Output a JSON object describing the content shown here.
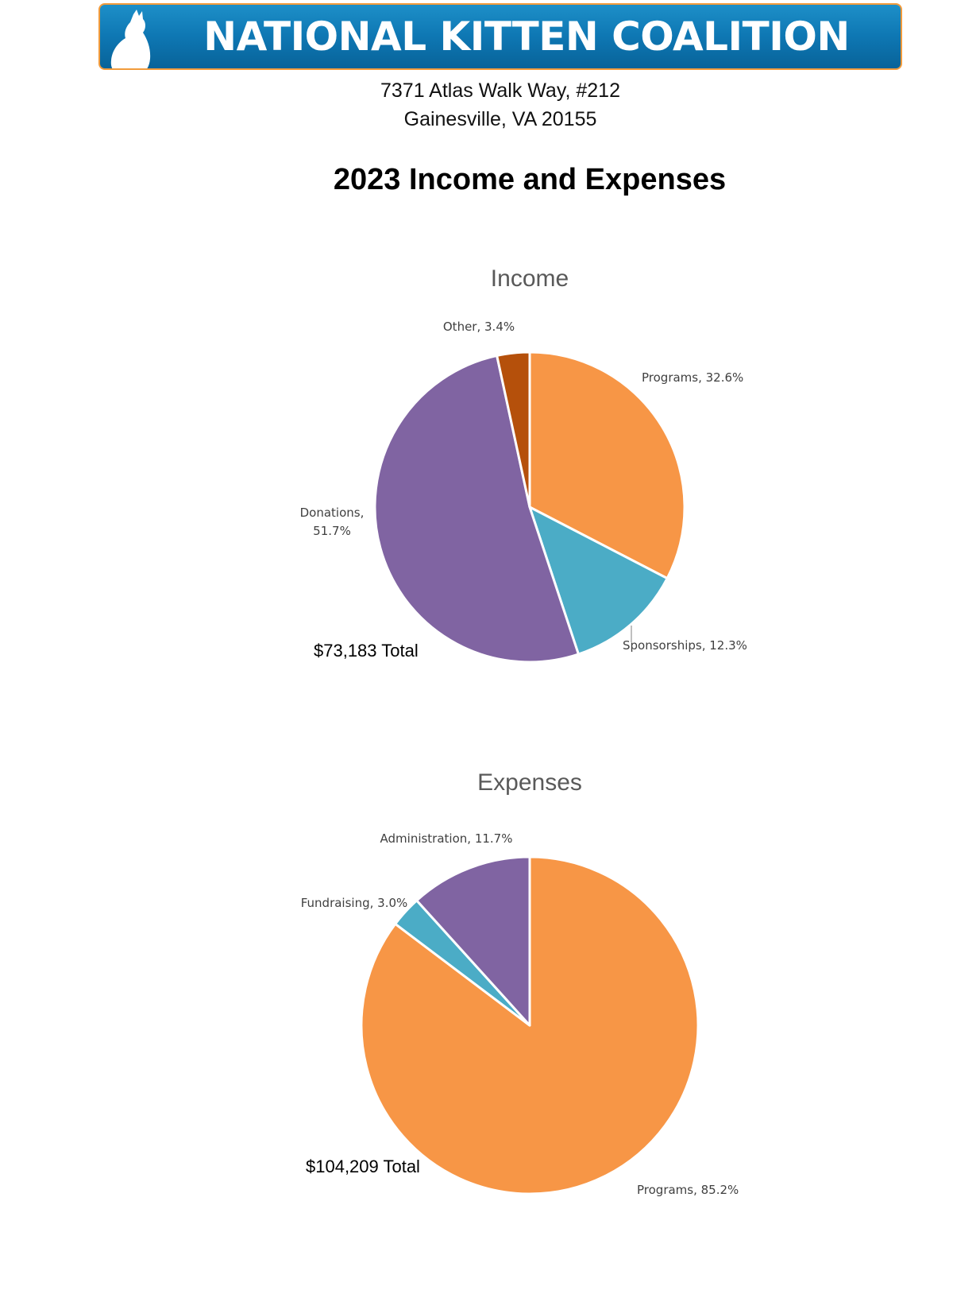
{
  "header": {
    "org_name": "NATIONAL KITTEN COALITION",
    "address_line1": "7371 Atlas Walk Way, #212",
    "address_line2": "Gainesville, VA  20155",
    "report_title": "2023 Income and Expenses"
  },
  "chart_data": [
    {
      "type": "pie",
      "title": "Income",
      "total_label": "$73,183 Total",
      "slices": [
        {
          "name": "Programs",
          "value": 32.6,
          "label": "Programs, 32.6%",
          "color": "#f79646"
        },
        {
          "name": "Sponsorships",
          "value": 12.3,
          "label": "Sponsorships, 12.3%",
          "color": "#4bacc6"
        },
        {
          "name": "Donations",
          "value": 51.7,
          "label": [
            "Donations,",
            "51.7%"
          ],
          "color": "#8064a2"
        },
        {
          "name": "Other",
          "value": 3.4,
          "label": "Other, 3.4%",
          "color": "#b5500b"
        }
      ]
    },
    {
      "type": "pie",
      "title": "Expenses",
      "total_label": "$104,209 Total",
      "slices": [
        {
          "name": "Programs",
          "value": 85.2,
          "label": "Programs, 85.2%",
          "color": "#f79646"
        },
        {
          "name": "Fundraising",
          "value": 3.0,
          "label": "Fundraising, 3.0%",
          "color": "#4bacc6"
        },
        {
          "name": "Administration",
          "value": 11.7,
          "label": "Administration, 11.7%",
          "color": "#8064a2"
        }
      ]
    }
  ]
}
